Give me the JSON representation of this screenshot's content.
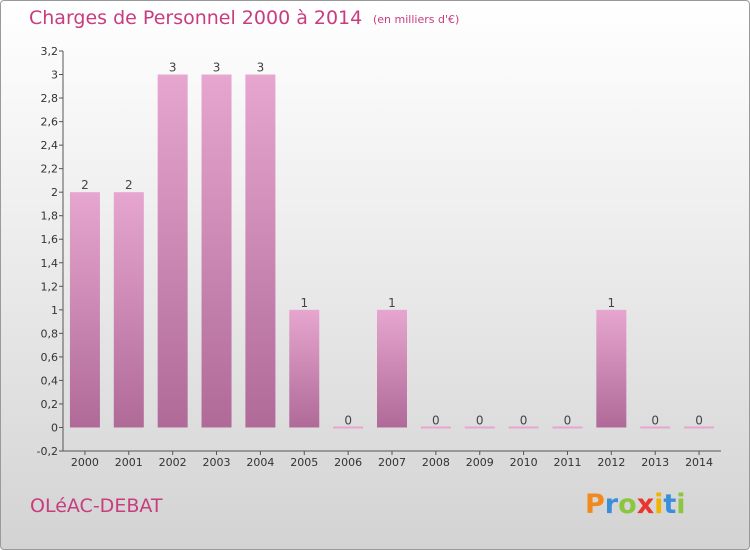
{
  "header": {
    "title": "Charges de Personnel 2000 à 2014",
    "subtitle": "(en milliers d'€)"
  },
  "footer": {
    "commune": "OLéAC-DEBAT",
    "logo": [
      "P",
      "r",
      "o",
      "x",
      "i",
      "t",
      "i"
    ]
  },
  "colors": {
    "title": "#c83c80",
    "bar_top": "#e6a6cf",
    "bar_bottom": "#b06a98",
    "logo": [
      "#f08a1e",
      "#3a8fd8",
      "#8cc63f",
      "#e8362d",
      "#f0b400",
      "#3a8fd8",
      "#8cc63f"
    ]
  },
  "chart_data": {
    "type": "bar",
    "categories": [
      "2000",
      "2001",
      "2002",
      "2003",
      "2004",
      "2005",
      "2006",
      "2007",
      "2008",
      "2009",
      "2010",
      "2011",
      "2012",
      "2013",
      "2014"
    ],
    "values": [
      2,
      2,
      3,
      3,
      3,
      1,
      0,
      1,
      0,
      0,
      0,
      0,
      1,
      0,
      0
    ],
    "labels": [
      "2",
      "2",
      "3",
      "3",
      "3",
      "1",
      "0",
      "1",
      "0",
      "0",
      "0",
      "0",
      "1",
      "0",
      "0"
    ],
    "ylim": [
      -0.2,
      3.2
    ],
    "yticks": [
      "-0,2",
      "0",
      "0,2",
      "0,4",
      "0,6",
      "0,8",
      "1",
      "1,2",
      "1,4",
      "1,6",
      "1,8",
      "2",
      "2,2",
      "2,4",
      "2,6",
      "2,8",
      "3",
      "3,2"
    ],
    "grid": false,
    "legend": "none"
  }
}
